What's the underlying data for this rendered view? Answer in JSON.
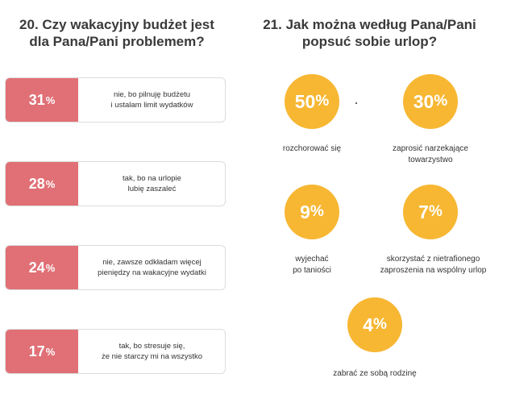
{
  "q20": {
    "title_line1": "20. Czy wakacyjny budżet jest",
    "title_line2": "dla Pana/Pani problemem?",
    "answers": [
      {
        "pct": "31",
        "sign": "%",
        "line1": "nie, bo pilnuję budżetu",
        "line2": "i ustalam limit wydatków"
      },
      {
        "pct": "28",
        "sign": "%",
        "line1": "tak, bo na urlopie",
        "line2": "lubię zaszaleć"
      },
      {
        "pct": "24",
        "sign": "%",
        "line1": "nie, zawsze odkładam więcej",
        "line2": "pieniędzy na wakacyjne wydatki"
      },
      {
        "pct": "17",
        "sign": "%",
        "line1": "tak, bo stresuje się,",
        "line2": "że nie starczy mi na wszystko"
      }
    ]
  },
  "q21": {
    "title_line1": "21. Jak można według Pana/Pani",
    "title_line2": "popsuć sobie urlop?",
    "answers": [
      {
        "pct": "50",
        "sign": "%",
        "line1": "rozchorować się",
        "line2": ""
      },
      {
        "pct": "30",
        "sign": "%",
        "line1": "zaprosić narzekające",
        "line2": "towarzystwo"
      },
      {
        "pct": "9",
        "sign": "%",
        "line1": "wyjechać",
        "line2": "po taniości"
      },
      {
        "pct": "7",
        "sign": "%",
        "line1": "skorzystać z nietrafionego",
        "line2": "zaproszenia na wspólny urlop"
      },
      {
        "pct": "4",
        "sign": "%",
        "line1": "zabrać ze sobą rodzinę",
        "line2": ""
      }
    ]
  },
  "colors": {
    "bar_accent": "#e07076",
    "circle_accent": "#f7b733"
  }
}
